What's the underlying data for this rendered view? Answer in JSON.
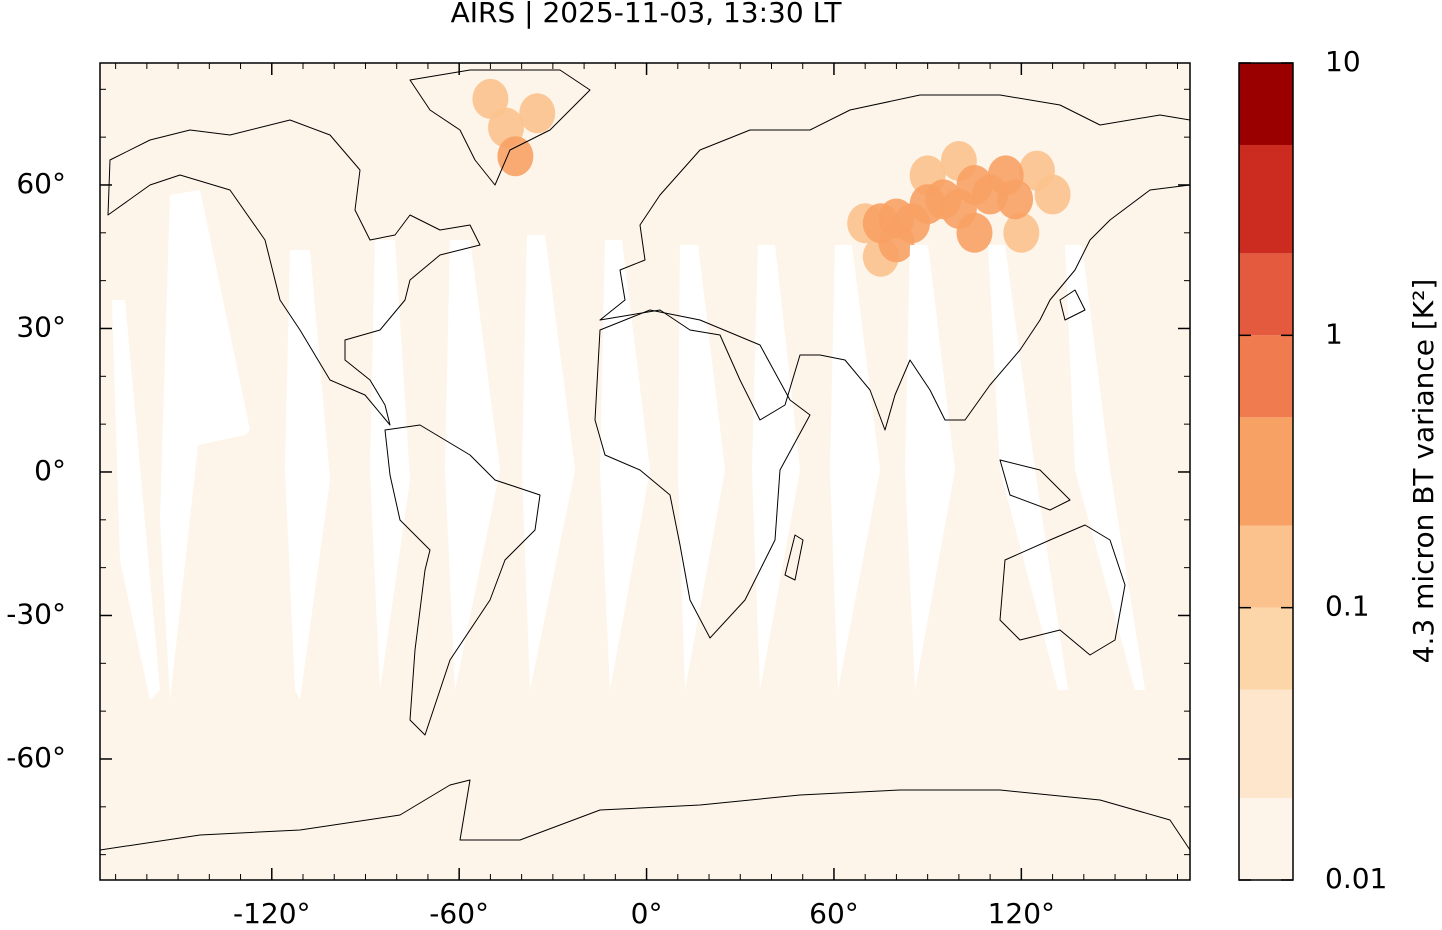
{
  "chart_data": {
    "type": "map",
    "title": "AIRS | 2025-11-03, 13:30 LT",
    "xlim": [
      -175,
      174
    ],
    "ylim": [
      -85.3,
      85.5
    ],
    "xticks": [
      {
        "value": -120,
        "label": "-120°"
      },
      {
        "value": -60,
        "label": "-60°"
      },
      {
        "value": 0,
        "label": "0°"
      },
      {
        "value": 60,
        "label": "60°"
      },
      {
        "value": 120,
        "label": "120°"
      }
    ],
    "yticks": [
      {
        "value": -60,
        "label": "-60°"
      },
      {
        "value": -30,
        "label": "-30°"
      },
      {
        "value": 0,
        "label": "0°"
      },
      {
        "value": 30,
        "label": "30°"
      },
      {
        "value": 60,
        "label": "60°"
      }
    ],
    "xminorticks": [
      -170,
      -160,
      -150,
      -140,
      -130,
      -110,
      -100,
      -90,
      -80,
      -70,
      -50,
      -40,
      -30,
      -20,
      -10,
      10,
      20,
      30,
      40,
      50,
      70,
      80,
      90,
      100,
      110,
      130,
      140,
      150,
      160,
      170
    ],
    "yminorticks": [
      -80,
      -70,
      -50,
      -40,
      -20,
      -10,
      10,
      20,
      40,
      50,
      70,
      80
    ],
    "background_value": 0.015,
    "hotspots": [
      {
        "lon": 110,
        "lat": 58,
        "value": 0.4
      },
      {
        "lon": 118,
        "lat": 57,
        "value": 0.45
      },
      {
        "lon": 105,
        "lat": 60,
        "value": 0.3
      },
      {
        "lon": 100,
        "lat": 55,
        "value": 0.35
      },
      {
        "lon": 95,
        "lat": 57,
        "value": 0.3
      },
      {
        "lon": 90,
        "lat": 56,
        "value": 0.25
      },
      {
        "lon": 85,
        "lat": 52,
        "value": 0.25
      },
      {
        "lon": 80,
        "lat": 53,
        "value": 0.2
      },
      {
        "lon": 75,
        "lat": 52,
        "value": 0.2
      },
      {
        "lon": 70,
        "lat": 52,
        "value": 0.15
      },
      {
        "lon": 75,
        "lat": 45,
        "value": 0.15
      },
      {
        "lon": 80,
        "lat": 48,
        "value": 0.2
      },
      {
        "lon": 105,
        "lat": 50,
        "value": 0.2
      },
      {
        "lon": 115,
        "lat": 62,
        "value": 0.25
      },
      {
        "lon": 125,
        "lat": 63,
        "value": 0.15
      },
      {
        "lon": 120,
        "lat": 50,
        "value": 0.15
      },
      {
        "lon": 100,
        "lat": 65,
        "value": 0.15
      },
      {
        "lon": 90,
        "lat": 62,
        "value": 0.15
      },
      {
        "lon": 130,
        "lat": 58,
        "value": 0.12
      },
      {
        "lon": -45,
        "lat": 72,
        "value": 0.15
      },
      {
        "lon": -42,
        "lat": 66,
        "value": 0.2
      },
      {
        "lon": -50,
        "lat": 78,
        "value": 0.12
      },
      {
        "lon": -35,
        "lat": 75,
        "value": 0.12
      }
    ],
    "colorbar": {
      "label": "4.3 micron BT variance [K²]",
      "scale": "log",
      "levels": [
        0.01,
        0.02,
        0.05,
        0.1,
        0.2,
        0.5,
        1,
        2,
        5,
        10
      ],
      "colors": [
        "#fef5ea",
        "#fde6cc",
        "#fcd5a8",
        "#fbc28d",
        "#f8a165",
        "#f07b4e",
        "#e45a3e",
        "#cc2b1f",
        "#9b0000"
      ],
      "ticks": [
        0.01,
        0.1,
        1,
        10
      ]
    }
  }
}
